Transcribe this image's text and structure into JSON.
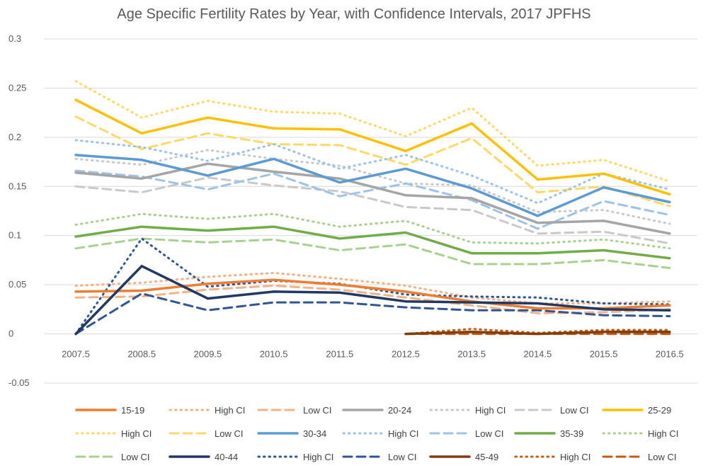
{
  "chart_data": {
    "type": "line",
    "title": "Age Specific Fertility Rates by Year, with Confidence  Intervals, 2017 JPFHS",
    "xlabel": "",
    "ylabel": "",
    "x": [
      2007.5,
      2008.5,
      2009.5,
      2010.5,
      2011.5,
      2012.5,
      2013.5,
      2014.5,
      2015.5,
      2016.5
    ],
    "x_tick_labels": [
      "2007.5",
      "2008.5",
      "2009.5",
      "2010.5",
      "2011.5",
      "2012.5",
      "2013.5",
      "2014.5",
      "2015.5",
      "2016.5"
    ],
    "ylim": [
      -0.05,
      0.3
    ],
    "y_ticks": [
      -0.05,
      0,
      0.05,
      0.1,
      0.15,
      0.2,
      0.25,
      0.3
    ],
    "y_tick_labels": [
      "-0.05",
      "0",
      "0.05",
      "0.1",
      "0.15",
      "0.2",
      "0.25",
      "0.3"
    ],
    "grid": true,
    "legend_position": "bottom",
    "series": [
      {
        "name": "15-19",
        "color": "#ED7D31",
        "style": "solid",
        "values": [
          0.043,
          0.044,
          0.051,
          0.055,
          0.05,
          0.043,
          0.033,
          0.026,
          0.026,
          0.029
        ]
      },
      {
        "name": "High CI",
        "color": "#F4B183",
        "style": "dotted",
        "values": [
          0.049,
          0.052,
          0.058,
          0.062,
          0.056,
          0.049,
          0.037,
          0.031,
          0.031,
          0.033
        ]
      },
      {
        "name": "Low CI",
        "color": "#F4B183",
        "style": "dashed",
        "values": [
          0.037,
          0.038,
          0.045,
          0.049,
          0.045,
          0.037,
          0.029,
          0.021,
          0.022,
          0.025
        ]
      },
      {
        "name": "20-24",
        "color": "#A5A5A5",
        "style": "solid",
        "values": [
          0.164,
          0.158,
          0.173,
          0.165,
          0.158,
          0.141,
          0.138,
          0.113,
          0.115,
          0.102
        ]
      },
      {
        "name": "High CI",
        "color": "#C9C9C9",
        "style": "dotted",
        "values": [
          0.178,
          0.172,
          0.187,
          0.178,
          0.171,
          0.153,
          0.151,
          0.124,
          0.126,
          0.112
        ]
      },
      {
        "name": "Low CI",
        "color": "#C9C9C9",
        "style": "dashed",
        "values": [
          0.15,
          0.144,
          0.159,
          0.151,
          0.145,
          0.129,
          0.126,
          0.102,
          0.104,
          0.092
        ]
      },
      {
        "name": "25-29",
        "color": "#FFC000",
        "style": "solid",
        "values": [
          0.238,
          0.204,
          0.22,
          0.209,
          0.208,
          0.186,
          0.214,
          0.157,
          0.163,
          0.142
        ]
      },
      {
        "name": "High CI",
        "color": "#FFD966",
        "style": "dotted",
        "values": [
          0.257,
          0.22,
          0.237,
          0.226,
          0.224,
          0.201,
          0.23,
          0.171,
          0.177,
          0.155
        ]
      },
      {
        "name": "Low CI",
        "color": "#FFD966",
        "style": "dashed",
        "values": [
          0.221,
          0.188,
          0.204,
          0.193,
          0.192,
          0.172,
          0.199,
          0.144,
          0.15,
          0.13
        ]
      },
      {
        "name": "30-34",
        "color": "#5B9BD5",
        "style": "solid",
        "values": [
          0.182,
          0.177,
          0.161,
          0.178,
          0.154,
          0.168,
          0.148,
          0.12,
          0.149,
          0.134
        ]
      },
      {
        "name": "High CI",
        "color": "#9DC3E6",
        "style": "dotted",
        "values": [
          0.197,
          0.19,
          0.176,
          0.193,
          0.168,
          0.182,
          0.161,
          0.133,
          0.163,
          0.147
        ]
      },
      {
        "name": "Low CI",
        "color": "#9DC3E6",
        "style": "dashed",
        "values": [
          0.166,
          0.16,
          0.147,
          0.163,
          0.14,
          0.153,
          0.136,
          0.107,
          0.135,
          0.121
        ]
      },
      {
        "name": "35-39",
        "color": "#70AD47",
        "style": "solid",
        "values": [
          0.099,
          0.109,
          0.105,
          0.109,
          0.097,
          0.103,
          0.082,
          0.082,
          0.085,
          0.077
        ]
      },
      {
        "name": "High CI",
        "color": "#A9D18E",
        "style": "dotted",
        "values": [
          0.111,
          0.122,
          0.117,
          0.122,
          0.109,
          0.115,
          0.093,
          0.092,
          0.096,
          0.087
        ]
      },
      {
        "name": "Low CI",
        "color": "#A9D18E",
        "style": "dashed",
        "values": [
          0.087,
          0.097,
          0.093,
          0.096,
          0.085,
          0.091,
          0.071,
          0.071,
          0.075,
          0.067
        ]
      },
      {
        "name": "40-44",
        "color": "#203864",
        "style": "solid",
        "values": [
          0.0,
          0.069,
          0.036,
          0.043,
          0.042,
          0.033,
          0.032,
          0.031,
          0.025,
          0.024
        ]
      },
      {
        "name": "High CI",
        "color": "#2F5597",
        "style": "dotted",
        "values": [
          0.0,
          0.097,
          0.048,
          0.054,
          0.051,
          0.04,
          0.038,
          0.037,
          0.031,
          0.03
        ]
      },
      {
        "name": "Low CI",
        "color": "#2F5597",
        "style": "dashed",
        "values": [
          0.0,
          0.041,
          0.024,
          0.032,
          0.032,
          0.027,
          0.024,
          0.024,
          0.019,
          0.018
        ]
      },
      {
        "name": "45-49",
        "color": "#843C0C",
        "style": "solid",
        "values": [
          null,
          null,
          null,
          null,
          null,
          0.0,
          0.002,
          0.0,
          0.002,
          0.002
        ]
      },
      {
        "name": "High CI",
        "color": "#C55A11",
        "style": "dotted",
        "values": [
          null,
          null,
          null,
          null,
          null,
          0.0,
          0.005,
          0.001,
          0.004,
          0.004
        ]
      },
      {
        "name": "Low CI",
        "color": "#C55A11",
        "style": "dashed",
        "values": [
          null,
          null,
          null,
          null,
          null,
          0.0,
          0.0,
          0.0,
          0.0,
          0.0
        ]
      }
    ]
  }
}
